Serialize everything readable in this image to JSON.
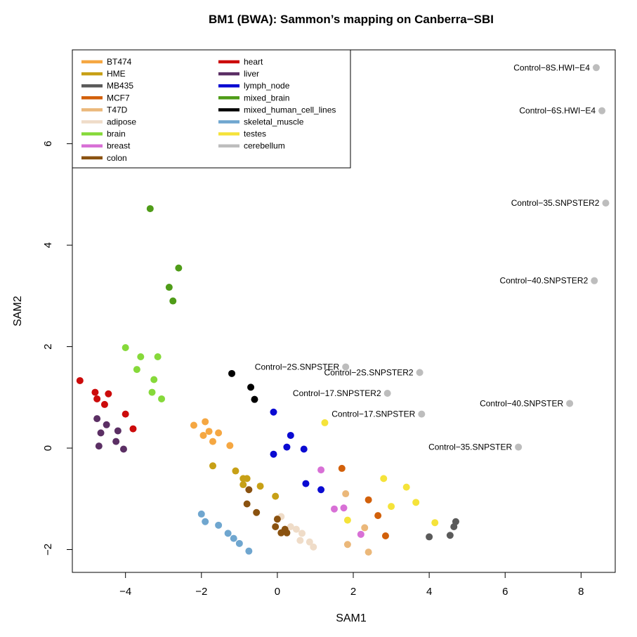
{
  "chart_data": {
    "type": "scatter",
    "title": "BM1 (BWA): Sammon’s mapping on Canberra−SBI",
    "xlabel": "SAM1",
    "ylabel": "SAM2",
    "xlim": [
      -5.4,
      8.9
    ],
    "ylim": [
      -2.45,
      7.85
    ],
    "xticks": [
      -4,
      -2,
      0,
      2,
      4,
      6,
      8
    ],
    "yticks": [
      -2,
      0,
      2,
      4,
      6
    ],
    "xtick_labels": [
      "−4",
      "−2",
      "0",
      "2",
      "4",
      "6",
      "8"
    ],
    "ytick_labels": [
      "−2",
      "0",
      "2",
      "4",
      "6"
    ],
    "grid": false,
    "legend_position": "top-left",
    "series": [
      {
        "name": "BT474",
        "color": "#f5a742",
        "points": [
          [
            -2.2,
            0.45
          ],
          [
            -1.9,
            0.52
          ],
          [
            -1.8,
            0.33
          ],
          [
            -1.55,
            0.3
          ],
          [
            -1.95,
            0.25
          ],
          [
            -1.7,
            0.13
          ],
          [
            -1.25,
            0.05
          ]
        ]
      },
      {
        "name": "HME",
        "color": "#c7a016",
        "points": [
          [
            -1.7,
            -0.35
          ],
          [
            -1.1,
            -0.45
          ],
          [
            -0.9,
            -0.6
          ],
          [
            -0.8,
            -0.6
          ],
          [
            -0.9,
            -0.72
          ],
          [
            -0.45,
            -0.75
          ],
          [
            -0.05,
            -0.95
          ]
        ]
      },
      {
        "name": "MB435",
        "color": "#5a5a5a",
        "points": [
          [
            4.7,
            -1.45
          ],
          [
            4.65,
            -1.55
          ],
          [
            4.55,
            -1.72
          ],
          [
            4.0,
            -1.75
          ]
        ]
      },
      {
        "name": "MCF7",
        "color": "#d2600a",
        "points": [
          [
            1.7,
            -0.4
          ],
          [
            2.4,
            -1.02
          ],
          [
            2.65,
            -1.33
          ],
          [
            2.85,
            -1.73
          ]
        ]
      },
      {
        "name": "T47D",
        "color": "#ebb87a",
        "points": [
          [
            1.8,
            -0.9
          ],
          [
            2.3,
            -1.57
          ],
          [
            1.85,
            -1.9
          ],
          [
            2.4,
            -2.05
          ]
        ]
      },
      {
        "name": "adipose",
        "color": "#efdcc8",
        "points": [
          [
            0.1,
            -1.35
          ],
          [
            0.35,
            -1.55
          ],
          [
            0.5,
            -1.6
          ],
          [
            0.65,
            -1.68
          ],
          [
            0.6,
            -1.82
          ],
          [
            0.85,
            -1.85
          ],
          [
            0.95,
            -1.95
          ]
        ]
      },
      {
        "name": "brain",
        "color": "#86d93a",
        "points": [
          [
            -4.0,
            1.98
          ],
          [
            -3.6,
            1.8
          ],
          [
            -3.15,
            1.8
          ],
          [
            -3.7,
            1.55
          ],
          [
            -3.25,
            1.35
          ],
          [
            -3.3,
            1.1
          ],
          [
            -3.05,
            0.97
          ]
        ]
      },
      {
        "name": "breast",
        "color": "#d870d6",
        "points": [
          [
            1.15,
            -0.43
          ],
          [
            1.5,
            -1.2
          ],
          [
            1.75,
            -1.18
          ],
          [
            2.2,
            -1.7
          ]
        ]
      },
      {
        "name": "colon",
        "color": "#8a5210",
        "points": [
          [
            -0.75,
            -0.82
          ],
          [
            -0.8,
            -1.1
          ],
          [
            -0.55,
            -1.27
          ],
          [
            0.0,
            -1.4
          ],
          [
            -0.05,
            -1.55
          ],
          [
            0.2,
            -1.6
          ],
          [
            0.1,
            -1.67
          ],
          [
            0.25,
            -1.67
          ]
        ]
      },
      {
        "name": "heart",
        "color": "#cc0b0b",
        "points": [
          [
            -5.2,
            1.33
          ],
          [
            -4.8,
            1.1
          ],
          [
            -4.75,
            0.97
          ],
          [
            -4.45,
            1.07
          ],
          [
            -4.55,
            0.86
          ],
          [
            -4.0,
            0.67
          ],
          [
            -3.8,
            0.38
          ]
        ]
      },
      {
        "name": "liver",
        "color": "#5b2f64",
        "points": [
          [
            -4.75,
            0.58
          ],
          [
            -4.5,
            0.46
          ],
          [
            -4.2,
            0.34
          ],
          [
            -4.65,
            0.3
          ],
          [
            -4.25,
            0.13
          ],
          [
            -4.7,
            0.04
          ],
          [
            -4.05,
            -0.02
          ]
        ]
      },
      {
        "name": "lymph_node",
        "color": "#0a0ad2",
        "points": [
          [
            -0.1,
            0.71
          ],
          [
            0.35,
            0.25
          ],
          [
            0.25,
            0.02
          ],
          [
            0.7,
            -0.02
          ],
          [
            -0.1,
            -0.12
          ],
          [
            0.75,
            -0.7
          ],
          [
            1.15,
            -0.82
          ]
        ]
      },
      {
        "name": "mixed_brain",
        "color": "#4f9c18",
        "points": [
          [
            -3.35,
            4.72
          ],
          [
            -2.6,
            3.55
          ],
          [
            -2.85,
            3.17
          ],
          [
            -2.75,
            2.9
          ]
        ]
      },
      {
        "name": "mixed_human_cell_lines",
        "color": "#000000",
        "points": [
          [
            -1.2,
            1.47
          ],
          [
            -0.7,
            1.2
          ],
          [
            -0.6,
            0.96
          ]
        ]
      },
      {
        "name": "skeletal_muscle",
        "color": "#6fa6cf",
        "points": [
          [
            -2.0,
            -1.3
          ],
          [
            -1.9,
            -1.45
          ],
          [
            -1.55,
            -1.52
          ],
          [
            -1.3,
            -1.68
          ],
          [
            -1.15,
            -1.78
          ],
          [
            -1.0,
            -1.88
          ],
          [
            -0.75,
            -2.03
          ]
        ]
      },
      {
        "name": "testes",
        "color": "#f5e33a",
        "points": [
          [
            1.25,
            0.5
          ],
          [
            2.8,
            -0.6
          ],
          [
            3.4,
            -0.77
          ],
          [
            3.65,
            -1.07
          ],
          [
            3.0,
            -1.15
          ],
          [
            1.85,
            -1.42
          ],
          [
            4.15,
            -1.47
          ]
        ]
      },
      {
        "name": "cerebellum",
        "color": "#bdbdbd",
        "points": [
          [
            8.4,
            7.5
          ],
          [
            8.55,
            6.65
          ],
          [
            8.65,
            4.83
          ],
          [
            8.35,
            3.3
          ],
          [
            1.8,
            1.6
          ],
          [
            3.75,
            1.49
          ],
          [
            2.9,
            1.08
          ],
          [
            3.8,
            0.67
          ],
          [
            7.7,
            0.88
          ],
          [
            6.35,
            0.02
          ]
        ]
      }
    ],
    "annotations": [
      {
        "text": "Control−8S.HWI−E4",
        "x": 8.4,
        "y": 7.5
      },
      {
        "text": "Control−6S.HWI−E4",
        "x": 8.55,
        "y": 6.65
      },
      {
        "text": "Control−35.SNPSTER2",
        "x": 8.65,
        "y": 4.83
      },
      {
        "text": "Control−40.SNPSTER2",
        "x": 8.35,
        "y": 3.3
      },
      {
        "text": "Control−2S.SNPSTER",
        "x": 1.8,
        "y": 1.6
      },
      {
        "text": "Control−2S.SNPSTER2",
        "x": 3.75,
        "y": 1.49
      },
      {
        "text": "Control−17.SNPSTER2",
        "x": 2.9,
        "y": 1.08
      },
      {
        "text": "Control−17.SNPSTER",
        "x": 3.8,
        "y": 0.67
      },
      {
        "text": "Control−40.SNPSTER",
        "x": 7.7,
        "y": 0.88
      },
      {
        "text": "Control−35.SNPSTER",
        "x": 6.35,
        "y": 0.02
      }
    ]
  }
}
